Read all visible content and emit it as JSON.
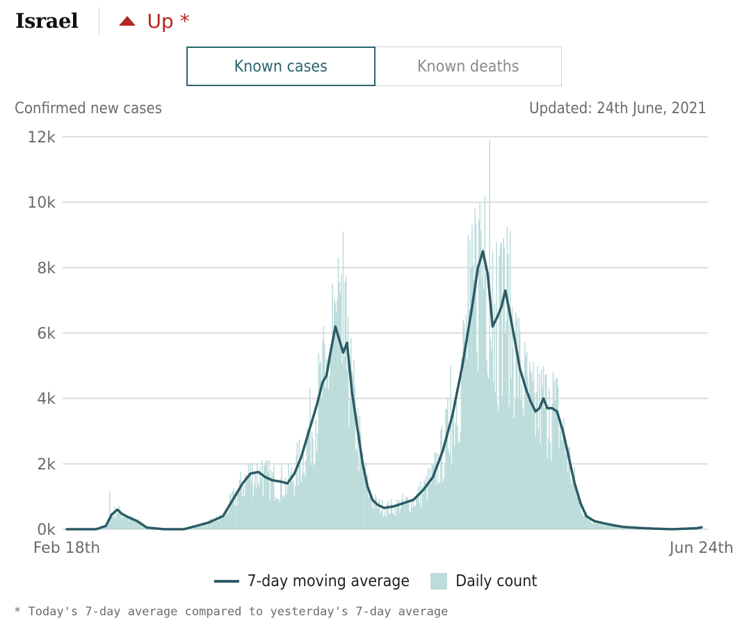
{
  "header": {
    "country": "Israel",
    "trend_label": "Up *"
  },
  "tabs": [
    {
      "label": "Known cases",
      "active": true
    },
    {
      "label": "Known deaths",
      "active": false
    }
  ],
  "chart_meta": {
    "left_label": "Confirmed new cases",
    "updated_label": "Updated: 24th June, 2021"
  },
  "chart_data": {
    "type": "bar",
    "ylim": [
      0,
      12000
    ],
    "y_ticks": [
      {
        "value": 0,
        "label": "0k"
      },
      {
        "value": 2000,
        "label": "2k"
      },
      {
        "value": 4000,
        "label": "4k"
      },
      {
        "value": 6000,
        "label": "6k"
      },
      {
        "value": 8000,
        "label": "8k"
      },
      {
        "value": 10000,
        "label": "10k"
      },
      {
        "value": 12000,
        "label": "12k"
      }
    ],
    "x_start_label": "Feb 18th",
    "x_end_label": "Jun 24th",
    "grid": true,
    "colors": {
      "daily": "#bcdcdb",
      "average": "#2b5b66",
      "grid": "#dcdcdc",
      "trend": "#b2261d",
      "active_tab": "#2a6470"
    },
    "moving_average_keypoints": [
      [
        0,
        0
      ],
      [
        30,
        0
      ],
      [
        40,
        100
      ],
      [
        46,
        450
      ],
      [
        52,
        600
      ],
      [
        56,
        480
      ],
      [
        62,
        380
      ],
      [
        72,
        250
      ],
      [
        82,
        50
      ],
      [
        100,
        0
      ],
      [
        120,
        0
      ],
      [
        130,
        80
      ],
      [
        145,
        200
      ],
      [
        160,
        400
      ],
      [
        170,
        900
      ],
      [
        180,
        1400
      ],
      [
        188,
        1700
      ],
      [
        196,
        1750
      ],
      [
        203,
        1600
      ],
      [
        210,
        1500
      ],
      [
        220,
        1450
      ],
      [
        226,
        1400
      ],
      [
        233,
        1700
      ],
      [
        240,
        2200
      ],
      [
        248,
        3000
      ],
      [
        256,
        3800
      ],
      [
        262,
        4500
      ],
      [
        266,
        4700
      ],
      [
        270,
        5400
      ],
      [
        275,
        6200
      ],
      [
        279,
        5800
      ],
      [
        283,
        5400
      ],
      [
        287,
        5700
      ],
      [
        292,
        4200
      ],
      [
        298,
        3000
      ],
      [
        303,
        2000
      ],
      [
        308,
        1300
      ],
      [
        313,
        900
      ],
      [
        318,
        750
      ],
      [
        325,
        650
      ],
      [
        335,
        700
      ],
      [
        345,
        800
      ],
      [
        355,
        900
      ],
      [
        365,
        1200
      ],
      [
        375,
        1600
      ],
      [
        385,
        2400
      ],
      [
        395,
        3500
      ],
      [
        405,
        5000
      ],
      [
        415,
        6800
      ],
      [
        421,
        8000
      ],
      [
        426,
        8500
      ],
      [
        431,
        7800
      ],
      [
        436,
        6200
      ],
      [
        441,
        6500
      ],
      [
        445,
        6800
      ],
      [
        449,
        7300
      ],
      [
        453,
        6700
      ],
      [
        458,
        5900
      ],
      [
        464,
        4900
      ],
      [
        470,
        4300
      ],
      [
        475,
        3900
      ],
      [
        480,
        3600
      ],
      [
        484,
        3700
      ],
      [
        488,
        4000
      ],
      [
        492,
        3700
      ],
      [
        497,
        3700
      ],
      [
        502,
        3600
      ],
      [
        508,
        3000
      ],
      [
        514,
        2200
      ],
      [
        520,
        1400
      ],
      [
        526,
        800
      ],
      [
        532,
        400
      ],
      [
        540,
        250
      ],
      [
        550,
        180
      ],
      [
        560,
        120
      ],
      [
        570,
        70
      ],
      [
        585,
        40
      ],
      [
        600,
        20
      ],
      [
        620,
        0
      ],
      [
        645,
        30
      ],
      [
        650,
        60
      ]
    ],
    "daily_count_outliers": [
      [
        44,
        1150
      ],
      [
        186,
        2000
      ],
      [
        200,
        2100
      ],
      [
        265,
        4300
      ],
      [
        272,
        7500
      ],
      [
        278,
        8300
      ],
      [
        283,
        9100
      ],
      [
        288,
        6500
      ],
      [
        393,
        5000
      ],
      [
        411,
        9000
      ],
      [
        418,
        9800
      ],
      [
        423,
        10000
      ],
      [
        428,
        10200
      ],
      [
        433,
        11900
      ],
      [
        436,
        8500
      ],
      [
        440,
        8800
      ],
      [
        444,
        8700
      ],
      [
        447,
        8900
      ],
      [
        470,
        5300
      ],
      [
        482,
        5000
      ],
      [
        494,
        4300
      ],
      [
        498,
        4800
      ]
    ]
  },
  "legend": {
    "average_label": "7-day moving average",
    "daily_label": "Daily count"
  },
  "footnote": "* Today's 7-day average compared to yesterday's 7-day average"
}
